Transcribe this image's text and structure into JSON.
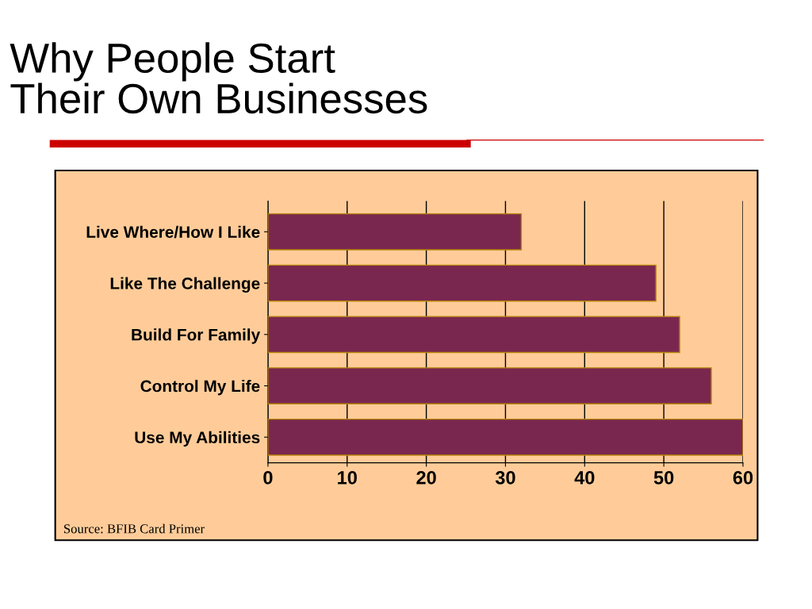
{
  "chart_data": {
    "type": "bar",
    "orientation": "horizontal",
    "title": "Why People Start\nTheir Own Businesses",
    "categories": [
      "Live Where/How I Like",
      "Like The Challenge",
      "Build For Family",
      "Control My Life",
      "Use My Abilities"
    ],
    "values": [
      32,
      49,
      52,
      56,
      60
    ],
    "color": "#7a2750",
    "xlim": [
      0,
      60
    ],
    "xticks": [
      0,
      10,
      20,
      30,
      40,
      50,
      60
    ],
    "grid": "x",
    "annotations": [
      "Source: BFIB Card Primer"
    ]
  }
}
